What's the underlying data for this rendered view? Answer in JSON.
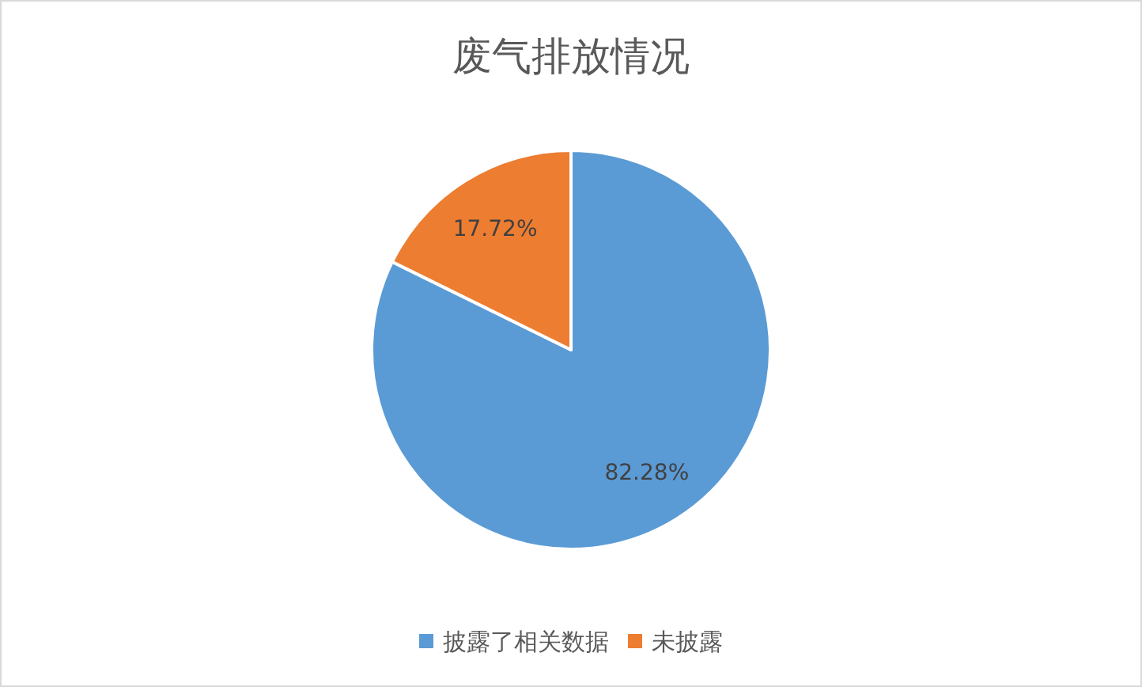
{
  "chart_data": {
    "type": "pie",
    "title": "废气排放情况",
    "categories": [
      "披露了相关数据",
      "未披露"
    ],
    "values": [
      82.28,
      17.72
    ],
    "colors": [
      "#5b9bd5",
      "#ed7d31"
    ],
    "value_labels": [
      "82.28%",
      "17.72%"
    ],
    "legend": "bottom"
  }
}
